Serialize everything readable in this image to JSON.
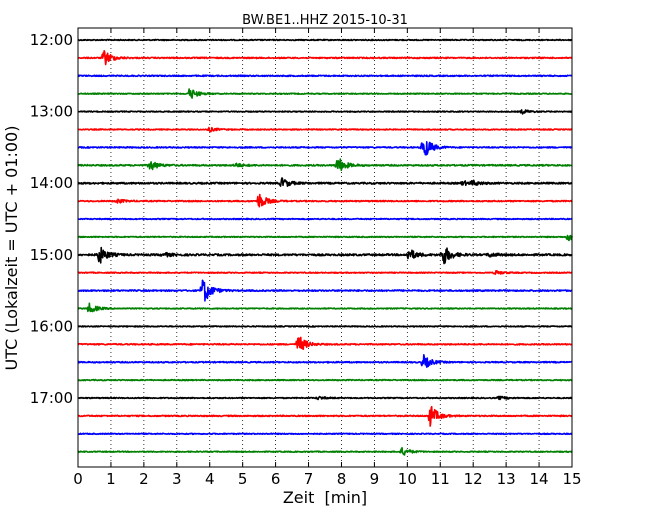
{
  "chart_data": {
    "type": "line",
    "title": "BW.BE1..HHZ 2015-10-31",
    "xlabel": "Zeit  [min]",
    "ylabel": "UTC (Lokalzeit = UTC + 01:00)",
    "xlim": [
      0,
      15
    ],
    "x_ticks": [
      "0",
      "1",
      "2",
      "3",
      "4",
      "5",
      "6",
      "7",
      "8",
      "9",
      "10",
      "11",
      "12",
      "13",
      "14",
      "15"
    ],
    "y_ticks": [
      {
        "label": "12:00",
        "trace": 0
      },
      {
        "label": "13:00",
        "trace": 4
      },
      {
        "label": "14:00",
        "trace": 8
      },
      {
        "label": "15:00",
        "trace": 12
      },
      {
        "label": "16:00",
        "trace": 16
      },
      {
        "label": "17:00",
        "trace": 20
      }
    ],
    "grid": "vertical dotted",
    "trace_colors": [
      "#000000",
      "#ff0000",
      "#0000ff",
      "#008000"
    ],
    "traces": [
      {
        "start": "12:00",
        "color_index": 0,
        "noise": 0.5,
        "events": []
      },
      {
        "start": "12:15",
        "color_index": 1,
        "noise": 0.6,
        "events": [
          {
            "t": 0.8,
            "amp": 8
          }
        ]
      },
      {
        "start": "12:30",
        "color_index": 2,
        "noise": 0.6,
        "events": []
      },
      {
        "start": "12:45",
        "color_index": 3,
        "noise": 0.5,
        "events": [
          {
            "t": 3.4,
            "amp": 6
          }
        ]
      },
      {
        "start": "13:00",
        "color_index": 0,
        "noise": 0.5,
        "events": [
          {
            "t": 13.5,
            "amp": 2
          }
        ]
      },
      {
        "start": "13:15",
        "color_index": 1,
        "noise": 0.5,
        "events": [
          {
            "t": 4.0,
            "amp": 2
          }
        ]
      },
      {
        "start": "13:30",
        "color_index": 2,
        "noise": 0.6,
        "events": [
          {
            "t": 10.5,
            "amp": 12
          }
        ]
      },
      {
        "start": "13:45",
        "color_index": 3,
        "noise": 0.7,
        "events": [
          {
            "t": 2.2,
            "amp": 5
          },
          {
            "t": 4.8,
            "amp": 2
          },
          {
            "t": 7.9,
            "amp": 8
          }
        ]
      },
      {
        "start": "14:00",
        "color_index": 0,
        "noise": 0.8,
        "events": [
          {
            "t": 6.2,
            "amp": 5
          },
          {
            "t": 12.0,
            "amp": 2
          },
          {
            "t": 11.7,
            "amp": 2
          }
        ]
      },
      {
        "start": "14:15",
        "color_index": 1,
        "noise": 0.6,
        "events": [
          {
            "t": 1.2,
            "amp": 2
          },
          {
            "t": 5.5,
            "amp": 8
          }
        ]
      },
      {
        "start": "14:30",
        "color_index": 2,
        "noise": 0.5,
        "events": []
      },
      {
        "start": "14:45",
        "color_index": 3,
        "noise": 0.5,
        "events": [
          {
            "t": 14.9,
            "amp": 4
          }
        ]
      },
      {
        "start": "15:00",
        "color_index": 0,
        "noise": 0.9,
        "events": [
          {
            "t": 0.65,
            "amp": 9
          },
          {
            "t": 2.6,
            "amp": 2
          },
          {
            "t": 10.05,
            "amp": 6
          },
          {
            "t": 11.1,
            "amp": 10
          },
          {
            "t": 12.5,
            "amp": 2
          }
        ]
      },
      {
        "start": "15:15",
        "color_index": 1,
        "noise": 0.5,
        "events": [
          {
            "t": 12.7,
            "amp": 2
          }
        ]
      },
      {
        "start": "15:30",
        "color_index": 2,
        "noise": 0.7,
        "events": [
          {
            "t": 3.8,
            "amp": 14
          }
        ]
      },
      {
        "start": "15:45",
        "color_index": 3,
        "noise": 0.5,
        "events": [
          {
            "t": 0.35,
            "amp": 5
          }
        ]
      },
      {
        "start": "16:00",
        "color_index": 0,
        "noise": 0.5,
        "events": []
      },
      {
        "start": "16:15",
        "color_index": 1,
        "noise": 0.6,
        "events": [
          {
            "t": 6.7,
            "amp": 9
          }
        ]
      },
      {
        "start": "16:30",
        "color_index": 2,
        "noise": 0.6,
        "events": [
          {
            "t": 10.5,
            "amp": 7
          }
        ]
      },
      {
        "start": "16:45",
        "color_index": 3,
        "noise": 0.5,
        "events": []
      },
      {
        "start": "17:00",
        "color_index": 0,
        "noise": 0.5,
        "events": [
          {
            "t": 7.3,
            "amp": 1.5
          },
          {
            "t": 12.8,
            "amp": 1.5
          }
        ]
      },
      {
        "start": "17:15",
        "color_index": 1,
        "noise": 0.6,
        "events": [
          {
            "t": 10.7,
            "amp": 11
          }
        ]
      },
      {
        "start": "17:30",
        "color_index": 2,
        "noise": 0.5,
        "events": []
      },
      {
        "start": "17:45",
        "color_index": 3,
        "noise": 0.5,
        "events": [
          {
            "t": 9.85,
            "amp": 4
          }
        ]
      }
    ]
  }
}
